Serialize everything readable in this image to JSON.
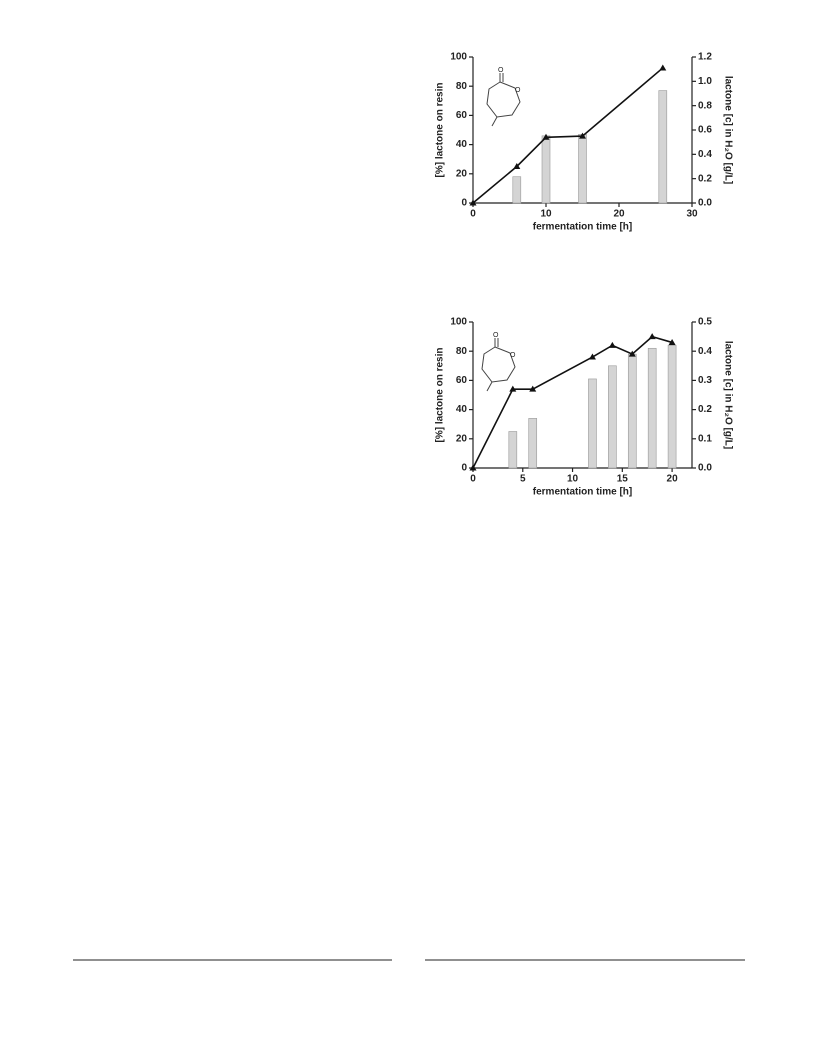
{
  "chart_data": [
    {
      "type": "combo",
      "xlabel": "fermentation time [h]",
      "ylabel": "[%] lactone on resin",
      "y2label": "lactone [c] in H₂O [g/L]",
      "xlim": [
        0,
        30
      ],
      "xticks": [
        0,
        10,
        20,
        30
      ],
      "ylim": [
        0,
        100
      ],
      "yticks": [
        0,
        20,
        40,
        60,
        80,
        100
      ],
      "y2lim": [
        0,
        1.2
      ],
      "y2ticks": [
        {
          "value": 0,
          "label": "0.0"
        },
        0.2,
        0.4,
        0.6,
        0.8,
        {
          "value": 1,
          "label": "1.0"
        },
        1.2
      ],
      "series": [
        {
          "type": "bar",
          "color": "#d4d4d4",
          "x": [
            6,
            10,
            15,
            26
          ],
          "values": [
            18,
            46,
            47,
            77
          ]
        },
        {
          "type": "line",
          "axis": "y2",
          "color": "#111111",
          "x": [
            0,
            6,
            10,
            15,
            26
          ],
          "values": [
            0,
            0.3,
            0.54,
            0.55,
            1.11
          ]
        }
      ]
    },
    {
      "type": "combo",
      "xlabel": "fermentation time [h]",
      "ylabel": "[%] lactone on resin",
      "y2label": "lactone [c] in H₂O [g/L]",
      "xlim": [
        0,
        22
      ],
      "xticks": [
        0,
        5,
        10,
        15,
        20
      ],
      "ylim": [
        0,
        100
      ],
      "yticks": [
        0,
        20,
        40,
        60,
        80,
        100
      ],
      "y2lim": [
        0,
        0.5
      ],
      "y2ticks": [
        {
          "value": 0,
          "label": "0.0"
        },
        0.1,
        0.2,
        0.3,
        0.4,
        0.5
      ],
      "series": [
        {
          "type": "bar",
          "color": "#d4d4d4",
          "x": [
            4,
            6,
            12,
            14,
            16,
            18,
            20
          ],
          "values": [
            25,
            34,
            61,
            70,
            78,
            82,
            84
          ]
        },
        {
          "type": "line",
          "axis": "y2",
          "color": "#111111",
          "x": [
            0,
            4,
            6,
            12,
            14,
            16,
            18,
            20
          ],
          "values": [
            0,
            0.27,
            0.27,
            0.38,
            0.42,
            0.39,
            0.45,
            0.43
          ]
        }
      ]
    }
  ]
}
